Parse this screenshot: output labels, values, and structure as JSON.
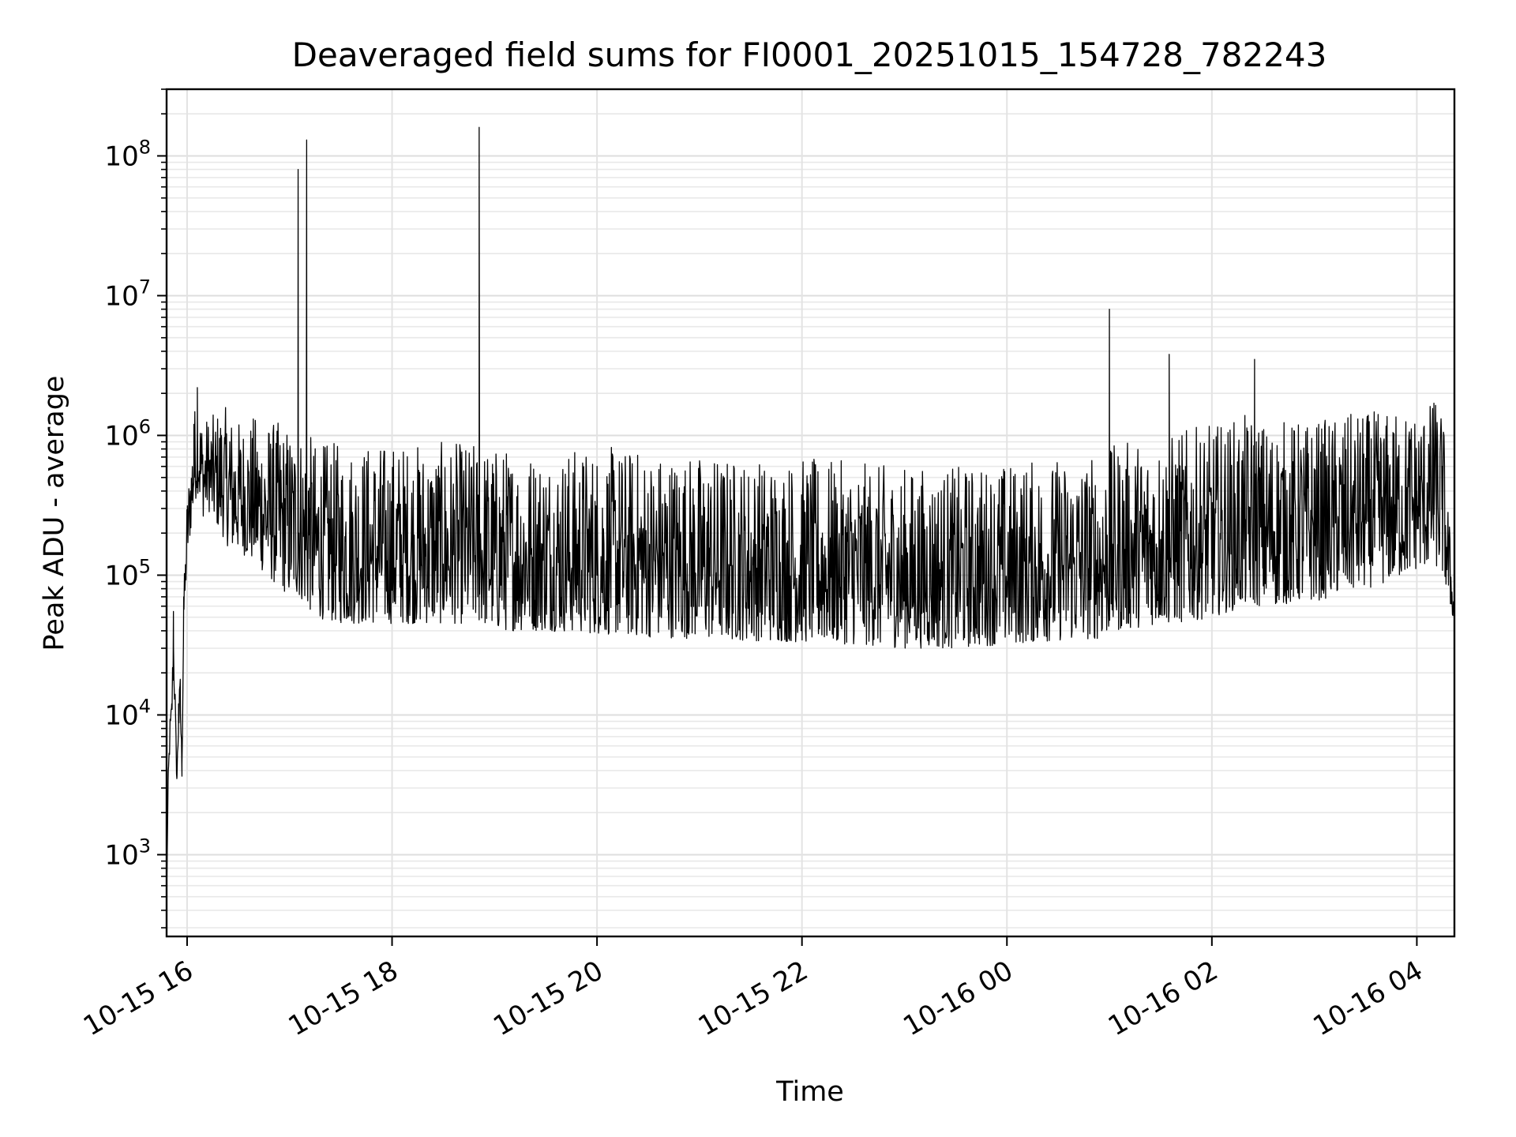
{
  "chart_data": {
    "type": "line",
    "title": "Deaveraged field sums for FI0001_20251015_154728_782243",
    "xlabel": "Time",
    "ylabel": "Peak ADU - average",
    "y_scale": "log",
    "ylim": [
      260,
      300000000
    ],
    "xlim": [
      "2025-10-15 15:48",
      "2025-10-16 04:22"
    ],
    "grid": true,
    "line_color": "#000000",
    "x_ticks": [
      "2025-10-15 16:00",
      "2025-10-15 18:00",
      "2025-10-15 20:00",
      "2025-10-15 22:00",
      "2025-10-16 00:00",
      "2025-10-16 02:00",
      "2025-10-16 04:00"
    ],
    "x_tick_labels": [
      "10-15 16",
      "10-15 18",
      "10-15 20",
      "10-15 22",
      "10-16 00",
      "10-16 02",
      "10-16 04"
    ],
    "y_ticks": [
      1000,
      10000,
      100000,
      1000000,
      10000000,
      100000000
    ],
    "y_tick_labels": [
      {
        "base": "10",
        "exp": "3"
      },
      {
        "base": "10",
        "exp": "4"
      },
      {
        "base": "10",
        "exp": "5"
      },
      {
        "base": "10",
        "exp": "6"
      },
      {
        "base": "10",
        "exp": "7"
      },
      {
        "base": "10",
        "exp": "8"
      }
    ],
    "series": [
      {
        "x": [
          "2025-10-15 15:48",
          "2025-10-15 15:49",
          "2025-10-15 15:50",
          "2025-10-15 15:51",
          "2025-10-15 15:52",
          "2025-10-15 15:53",
          "2025-10-15 15:54",
          "2025-10-15 15:55",
          "2025-10-15 15:56",
          "2025-10-15 15:57",
          "2025-10-15 15:58",
          "2025-10-15 15:59",
          "2025-10-15 16:00",
          "2025-10-15 16:02",
          "2025-10-15 16:04",
          "2025-10-15 16:06",
          "2025-10-15 16:08",
          "2025-10-15 16:10",
          "2025-10-15 16:12",
          "2025-10-15 16:15",
          "2025-10-15 16:20",
          "2025-10-15 16:25",
          "2025-10-15 16:30",
          "2025-10-15 16:40",
          "2025-10-15 16:50",
          "2025-10-15 17:00",
          "2025-10-15 17:05",
          "2025-10-15 17:10",
          "2025-10-15 17:11",
          "2025-10-15 17:12",
          "2025-10-15 17:13",
          "2025-10-15 17:15",
          "2025-10-15 17:30",
          "2025-10-15 17:45",
          "2025-10-15 18:00",
          "2025-10-15 18:30",
          "2025-10-15 18:50",
          "2025-10-15 18:51",
          "2025-10-15 18:52",
          "2025-10-15 19:00",
          "2025-10-15 19:30",
          "2025-10-15 20:00",
          "2025-10-15 20:30",
          "2025-10-15 21:00",
          "2025-10-15 21:30",
          "2025-10-15 22:00",
          "2025-10-15 22:30",
          "2025-10-15 23:00",
          "2025-10-15 23:30",
          "2025-10-16 00:00",
          "2025-10-16 00:30",
          "2025-10-16 00:55",
          "2025-10-16 01:00",
          "2025-10-16 01:05",
          "2025-10-16 01:30",
          "2025-10-16 01:35",
          "2025-10-16 01:40",
          "2025-10-16 02:00",
          "2025-10-16 02:20",
          "2025-10-16 02:25",
          "2025-10-16 02:30",
          "2025-10-16 03:00",
          "2025-10-16 03:30",
          "2025-10-16 03:45",
          "2025-10-16 04:00",
          "2025-10-16 04:10",
          "2025-10-16 04:15",
          "2025-10-16 04:22"
        ],
        "values": [
          500,
          4000,
          9000,
          12000,
          55000,
          14000,
          3500,
          12000,
          18000,
          4500,
          70000,
          100000,
          200000,
          400000,
          1200000,
          2200000,
          900000,
          500000,
          800000,
          700000,
          1000000,
          900000,
          600000,
          1200000,
          800000,
          500000,
          80000000,
          130000000,
          400000,
          300000,
          250000,
          200000,
          150000,
          130000,
          150000,
          120000,
          140000,
          160000000,
          150000,
          110000,
          120000,
          100000,
          110000,
          90000,
          90000,
          85000,
          90000,
          80000,
          75000,
          90000,
          110000,
          130000,
          8000000,
          150000,
          180000,
          3800000,
          120000,
          150000,
          250000,
          3500000,
          220000,
          180000,
          250000,
          300000,
          400000,
          1700000,
          600000,
          45000
        ],
        "band_low": [
          500,
          3000,
          6000,
          8000,
          20000,
          9000,
          3000,
          7000,
          9000,
          3500,
          40000,
          70000,
          120000,
          200000,
          300000,
          400000,
          300000,
          250000,
          300000,
          250000,
          200000,
          150000,
          150000,
          120000,
          90000,
          70000,
          70000,
          60000,
          55000,
          55000,
          55000,
          50000,
          45000,
          45000,
          45000,
          45000,
          45000,
          45000,
          45000,
          40000,
          40000,
          38000,
          36000,
          35000,
          34000,
          33000,
          32000,
          30000,
          30000,
          32000,
          34000,
          35000,
          38000,
          40000,
          45000,
          45000,
          45000,
          50000,
          60000,
          60000,
          60000,
          65000,
          80000,
          90000,
          110000,
          120000,
          100000,
          45000
        ],
        "band_high": [
          500,
          4500,
          10000,
          14000,
          55000,
          15000,
          4000,
          13000,
          20000,
          5000,
          80000,
          150000,
          400000,
          700000,
          1500000,
          2300000,
          1500000,
          1300000,
          1400000,
          1400000,
          1700000,
          1500000,
          1300000,
          1400000,
          1300000,
          1200000,
          1200000,
          1100000,
          1000000,
          1000000,
          1000000,
          900000,
          900000,
          900000,
          900000,
          900000,
          900000,
          900000,
          900000,
          850000,
          800000,
          850000,
          800000,
          750000,
          700000,
          700000,
          650000,
          600000,
          600000,
          650000,
          700000,
          750000,
          800000,
          900000,
          1000000,
          1000000,
          1100000,
          1200000,
          1400000,
          1500000,
          1300000,
          1300000,
          1500000,
          1500000,
          1600000,
          1800000,
          1700000,
          60000
        ]
      }
    ]
  }
}
